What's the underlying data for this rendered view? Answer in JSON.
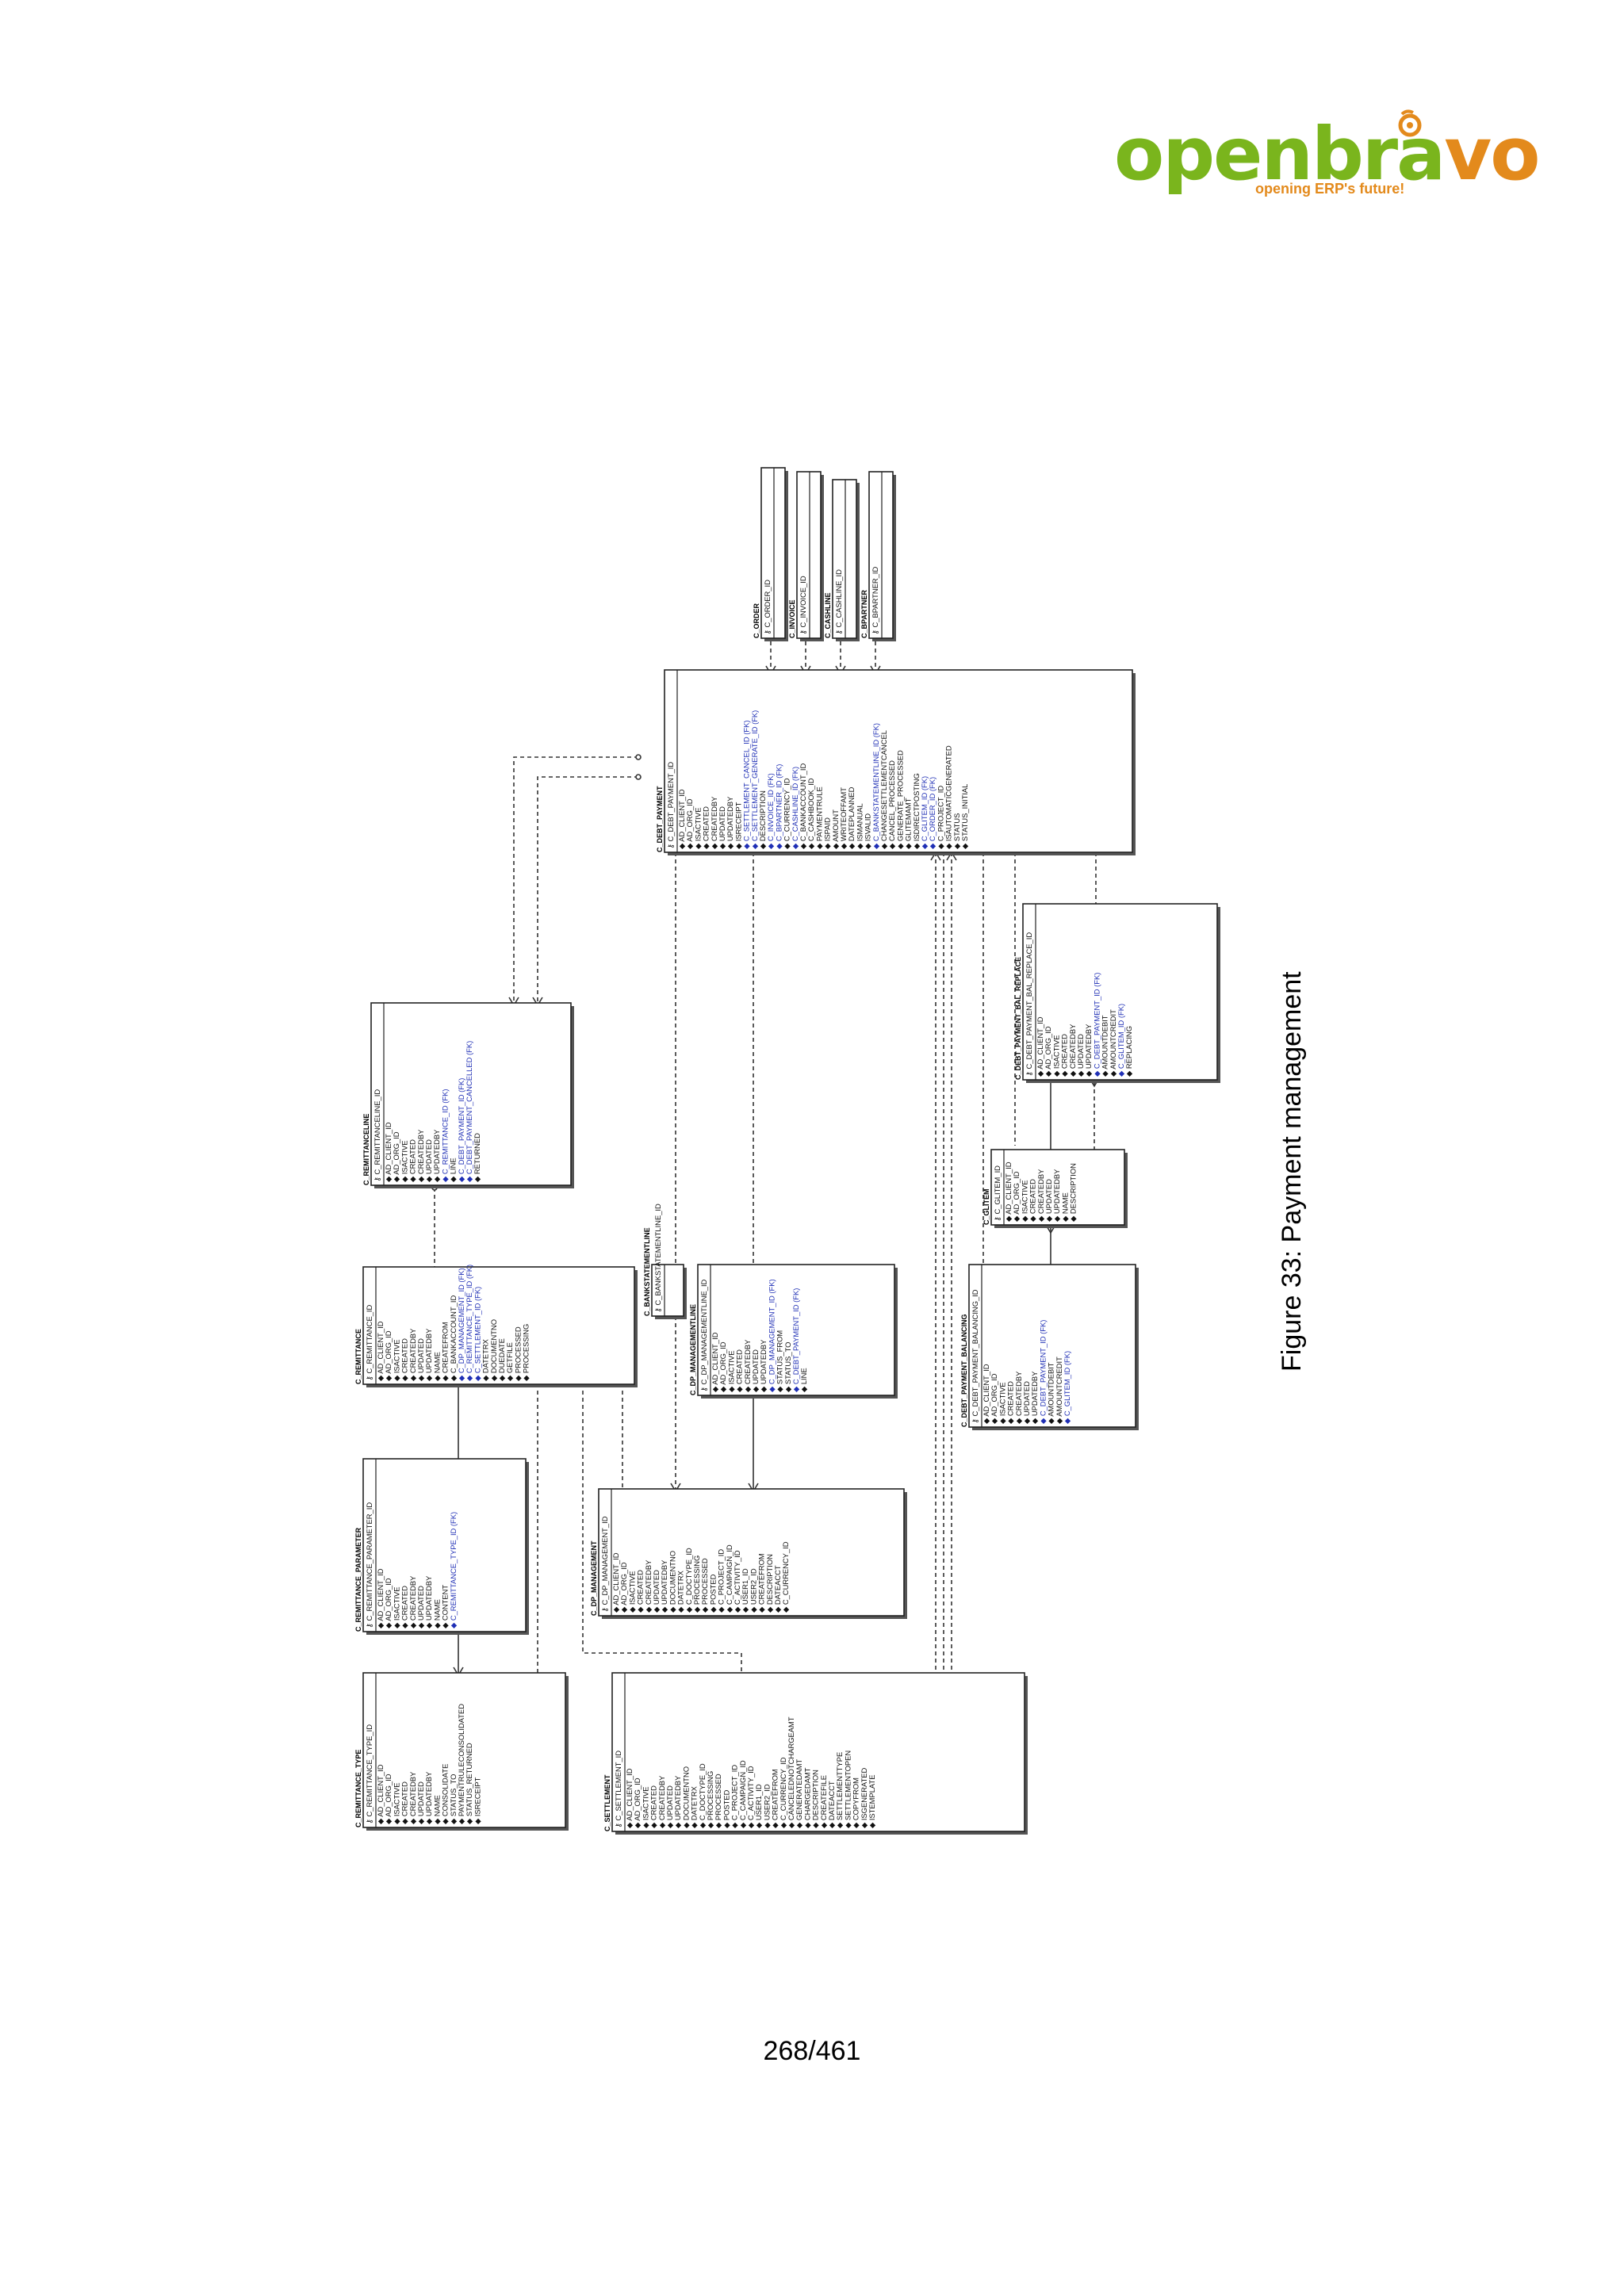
{
  "logo": {
    "word_green": "openbra",
    "word_orange": "vo",
    "tagline": "opening ERP's future!",
    "mark": "™"
  },
  "caption": "Figure 33: Payment management",
  "page_number": "268/461",
  "tables": [
    {
      "name": "C_ORDER",
      "columns": [
        "C_ORDER_ID"
      ]
    },
    {
      "name": "C_INVOICE",
      "columns": [
        "C_INVOICE_ID"
      ]
    },
    {
      "name": "C_CASHLINE",
      "columns": [
        "C_CASHLINE_ID"
      ]
    },
    {
      "name": "C_BPARTNER",
      "columns": [
        "C_BPARTNER_ID"
      ]
    },
    {
      "name": "C_DEBT_PAYMENT",
      "columns": [
        "C_DEBT_PAYMENT_ID",
        "AD_CLIENT_ID",
        "AD_ORG_ID",
        "ISACTIVE",
        "CREATED",
        "CREATEDBY",
        "UPDATED",
        "UPDATEDBY",
        "ISRECEIPT",
        "C_SETTLEMENT_CANCEL_ID (FK)",
        "C_SETTLEMENT_GENERATE_ID (FK)",
        "DESCRIPTION",
        "C_INVOICE_ID (FK)",
        "C_BPARTNER_ID (FK)",
        "C_CURRENCY_ID",
        "C_CASHLINE_ID (FK)",
        "C_BANKACCOUNT_ID",
        "C_CASHBOOK_ID",
        "PAYMENTRULE",
        "ISPAID",
        "AMOUNT",
        "WRITEOFFAMT",
        "DATEPLANNED",
        "ISMANUAL",
        "ISVALID",
        "C_BANKSTATEMENTLINE_ID (FK)",
        "CHANGESETTLEMENTCANCEL",
        "CANCEL_PROCESSED",
        "GENERATE_PROCESSED",
        "GLITEMAMT",
        "ISDIRECTPOSTING",
        "C_GLITEM_ID (FK)",
        "C_ORDER_ID (FK)",
        "C_PROJECT_ID",
        "ISAUTOMATICGENERATED",
        "STATUS",
        "STATUS_INITIAL"
      ]
    },
    {
      "name": "C_REMITTANCELINE",
      "columns": [
        "C_REMITTANCELINE_ID",
        "AD_CLIENT_ID",
        "AD_ORG_ID",
        "ISACTIVE",
        "CREATED",
        "CREATEDBY",
        "UPDATED",
        "UPDATEDBY",
        "C_REMITTANCE_ID (FK)",
        "LINE",
        "C_DEBT_PAYMENT_ID (FK)",
        "C_DEBT_PAYMENT_CANCELLED (FK)",
        "RETURNED"
      ]
    },
    {
      "name": "C_DEBT_PAYMENT_BAL_REPLACE",
      "columns": [
        "C_DEBT_PAYMENT_BAL_REPLACE_ID",
        "AD_CLIENT_ID",
        "AD_ORG_ID",
        "ISACTIVE",
        "CREATED",
        "CREATEDBY",
        "UPDATED",
        "UPDATEDBY",
        "C_DEBT_PAYMENT_ID (FK)",
        "AMOUNTDEBIT",
        "AMOUNTCREDIT",
        "C_GLITEM_ID (FK)",
        "REPLACING"
      ]
    },
    {
      "name": "C_GLITEM",
      "columns": [
        "C_GLITEM_ID",
        "AD_CLIENT_ID",
        "AD_ORG_ID",
        "ISACTIVE",
        "CREATED",
        "CREATEDBY",
        "UPDATED",
        "UPDATEDBY",
        "NAME",
        "DESCRIPTION"
      ]
    },
    {
      "name": "C_REMITTANCE",
      "columns": [
        "C_REMITTANCE_ID",
        "AD_CLIENT_ID",
        "AD_ORG_ID",
        "ISACTIVE",
        "CREATED",
        "CREATEDBY",
        "UPDATED",
        "UPDATEDBY",
        "NAME",
        "CREATEFROM",
        "C_BANKACCOUNT_ID",
        "C_DP_MANAGEMENT_ID (FK)",
        "C_REMITTANCE_TYPE_ID (FK)",
        "C_SETTLEMENT_ID (FK)",
        "DATETRX",
        "DOCUMENTNO",
        "DUEDATE",
        "GETFILE",
        "PROCESSED",
        "PROCESSING"
      ]
    },
    {
      "name": "C_BANKSTATEMENTLINE",
      "columns": [
        "C_BANKSTATEMENTLINE_ID"
      ]
    },
    {
      "name": "C_DP_MANAGEMENTLINE",
      "columns": [
        "C_DP_MANAGEMENTLINE_ID",
        "AD_CLIENT_ID",
        "AD_ORG_ID",
        "ISACTIVE",
        "CREATED",
        "CREATEDBY",
        "UPDATED",
        "UPDATEDBY",
        "C_DP_MANAGEMENT_ID (FK)",
        "STATUS_FROM",
        "STATUS_TO",
        "C_DEBT_PAYMENT_ID (FK)",
        "LINE"
      ]
    },
    {
      "name": "C_DEBT_PAYMENT_BALANCING",
      "columns": [
        "C_DEBT_PAYMENT_BALANCING_ID",
        "AD_CLIENT_ID",
        "AD_ORG_ID",
        "ISACTIVE",
        "CREATED",
        "CREATEDBY",
        "UPDATED",
        "UPDATEDBY",
        "C_DEBT_PAYMENT_ID (FK)",
        "AMOUNTDEBIT",
        "AMOUNTCREDIT",
        "C_GLITEM_ID (FK)"
      ]
    },
    {
      "name": "C_REMITTANCE_PARAMETER",
      "columns": [
        "C_REMITTANCE_PARAMETER_ID",
        "AD_CLIENT_ID",
        "AD_ORG_ID",
        "ISACTIVE",
        "CREATED",
        "CREATEDBY",
        "UPDATED",
        "UPDATEDBY",
        "NAME",
        "CONTENT",
        "C_REMITTANCE_TYPE_ID (FK)"
      ]
    },
    {
      "name": "C_DP_MANAGEMENT",
      "columns": [
        "C_DP_MANAGEMENT_ID",
        "AD_CLIENT_ID",
        "AD_ORG_ID",
        "ISACTIVE",
        "CREATED",
        "CREATEDBY",
        "UPDATED",
        "UPDATEDBY",
        "DOCUMENTNO",
        "DATETRX",
        "C_DOCTYPE_ID",
        "PROCESSING",
        "PROCESSED",
        "POSTED",
        "C_PROJECT_ID",
        "C_CAMPAIGN_ID",
        "C_ACTIVITY_ID",
        "USER1_ID",
        "USER2_ID",
        "CREATEFROM",
        "DESCRIPTION",
        "DATEACCT",
        "C_CURRENCY_ID"
      ]
    },
    {
      "name": "C_REMITTANCE_TYPE",
      "columns": [
        "C_REMITTANCE_TYPE_ID",
        "AD_CLIENT_ID",
        "AD_ORG_ID",
        "ISACTIVE",
        "CREATED",
        "CREATEDBY",
        "UPDATED",
        "UPDATEDBY",
        "NAME",
        "CONSOLIDATE",
        "STATUS_TO",
        "PAYMENTRULECONSOLIDATED",
        "STATUS_RETURNED",
        "ISRECEIPT"
      ]
    },
    {
      "name": "C_SETTLEMENT",
      "columns": [
        "C_SETTLEMENT_ID",
        "AD_CLIENT_ID",
        "AD_ORG_ID",
        "ISACTIVE",
        "CREATED",
        "CREATEDBY",
        "UPDATED",
        "UPDATEDBY",
        "DOCUMENTNO",
        "DATETRX",
        "C_DOCTYPE_ID",
        "PROCESSING",
        "PROCESSED",
        "POSTED",
        "C_PROJECT_ID",
        "C_CAMPAIGN_ID",
        "C_ACTIVITY_ID",
        "USER1_ID",
        "USER2_ID",
        "CREATEFROM",
        "C_CURRENCY_ID",
        "CANCELEDNOTCHARGEAMT",
        "GENERATEDAMT",
        "CHARGEDAMT",
        "DESCRIPTION",
        "CREATEFILE",
        "DATEACCT",
        "SETTLEMENTTYPE",
        "SETTLEMENTOPEN",
        "COPYFROM",
        "ISGENERATED",
        "ISTEMPLATE"
      ]
    }
  ]
}
